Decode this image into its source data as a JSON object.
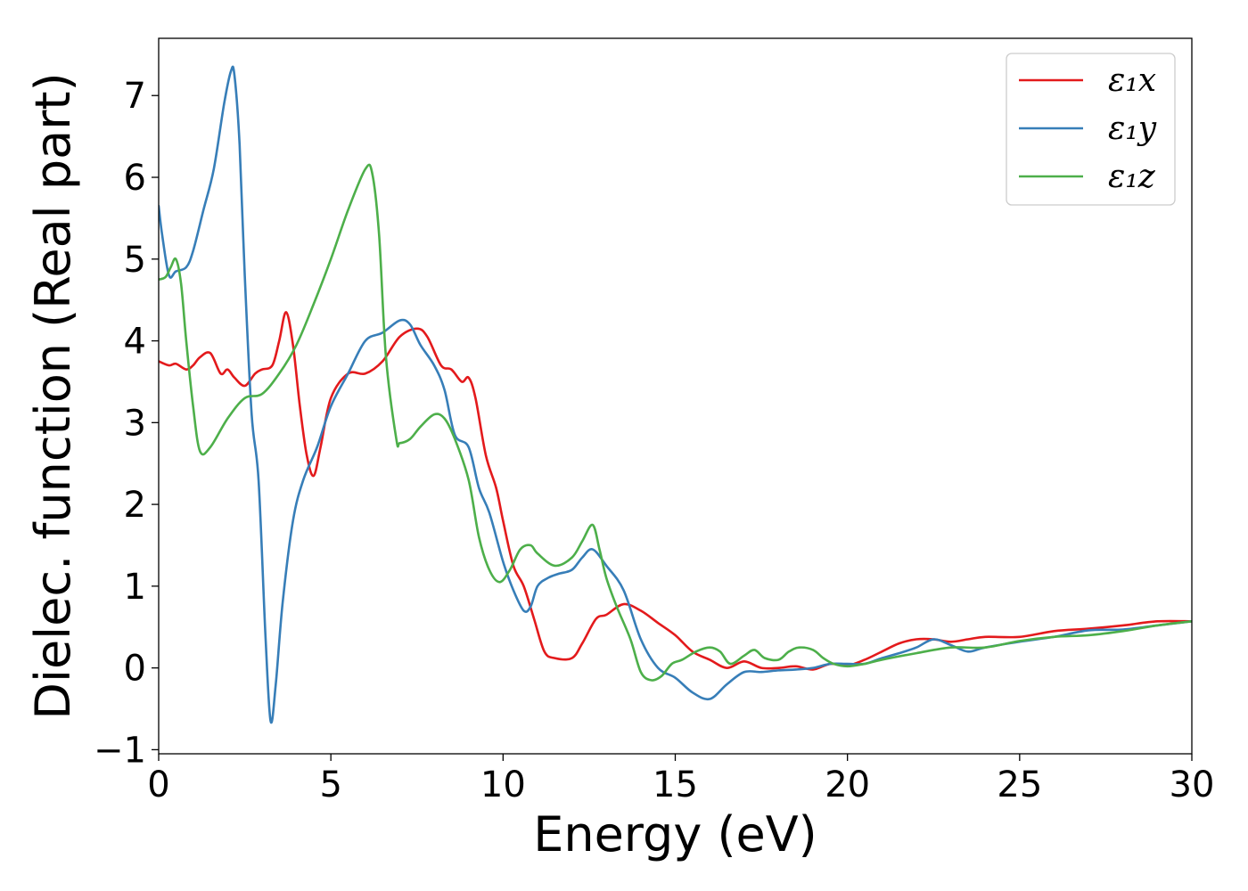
{
  "chart_data": {
    "type": "line",
    "xlabel": "Energy (eV)",
    "ylabel": "Dielec. function (Real part)",
    "xlim": [
      0,
      30
    ],
    "ylim": [
      -1.05,
      7.7
    ],
    "xticks": [
      0,
      5,
      10,
      15,
      20,
      25,
      30
    ],
    "yticks": [
      -1,
      0,
      1,
      2,
      3,
      4,
      5,
      6,
      7
    ],
    "xtick_labels": [
      "0",
      "5",
      "10",
      "15",
      "20",
      "25",
      "30"
    ],
    "ytick_labels": [
      "−1",
      "0",
      "1",
      "2",
      "3",
      "4",
      "5",
      "6",
      "7"
    ],
    "grid": false,
    "legend_position": "top-right",
    "series": [
      {
        "name": "ε₁x",
        "color": "#e31a1c",
        "x": [
          0,
          0.3,
          0.5,
          0.8,
          1.0,
          1.2,
          1.5,
          1.8,
          2.0,
          2.2,
          2.5,
          2.8,
          3.0,
          3.3,
          3.5,
          3.7,
          3.9,
          4.1,
          4.3,
          4.5,
          4.7,
          5.0,
          5.5,
          6.0,
          6.5,
          7.0,
          7.5,
          7.8,
          8.2,
          8.5,
          8.8,
          9.0,
          9.2,
          9.5,
          9.8,
          10.0,
          10.3,
          10.6,
          10.9,
          11.2,
          11.5,
          12.0,
          12.3,
          12.7,
          13.0,
          13.5,
          14.0,
          14.5,
          15.0,
          15.5,
          16.0,
          16.5,
          17.0,
          17.5,
          18.0,
          18.5,
          19.0,
          19.5,
          20.0,
          20.5,
          21.0,
          21.5,
          22.0,
          22.5,
          23.0,
          23.5,
          24.0,
          25.0,
          26.0,
          27.0,
          28.0,
          29.0,
          30.0
        ],
        "y": [
          3.75,
          3.7,
          3.72,
          3.65,
          3.7,
          3.8,
          3.85,
          3.6,
          3.65,
          3.55,
          3.45,
          3.6,
          3.65,
          3.7,
          4.0,
          4.35,
          3.95,
          3.2,
          2.6,
          2.35,
          2.7,
          3.3,
          3.6,
          3.6,
          3.75,
          4.05,
          4.15,
          4.05,
          3.7,
          3.65,
          3.5,
          3.55,
          3.3,
          2.6,
          2.2,
          1.8,
          1.25,
          1.0,
          0.6,
          0.2,
          0.12,
          0.12,
          0.3,
          0.6,
          0.65,
          0.78,
          0.7,
          0.55,
          0.4,
          0.2,
          0.1,
          0.0,
          0.08,
          0.0,
          0.0,
          0.02,
          -0.02,
          0.05,
          0.03,
          0.1,
          0.2,
          0.3,
          0.35,
          0.35,
          0.32,
          0.35,
          0.38,
          0.38,
          0.45,
          0.48,
          0.52,
          0.57,
          0.57
        ]
      },
      {
        "name": "ε₁y",
        "color": "#377eb8",
        "x": [
          0,
          0.1,
          0.3,
          0.5,
          0.8,
          1.0,
          1.3,
          1.6,
          1.9,
          2.1,
          2.2,
          2.35,
          2.5,
          2.7,
          2.9,
          3.1,
          3.25,
          3.4,
          3.6,
          3.9,
          4.2,
          4.6,
          5.0,
          5.5,
          6.0,
          6.5,
          7.0,
          7.3,
          7.6,
          8.0,
          8.3,
          8.6,
          9.0,
          9.3,
          9.6,
          10.0,
          10.3,
          10.6,
          10.8,
          11.0,
          11.3,
          11.6,
          12.0,
          12.3,
          12.6,
          13.0,
          13.5,
          14.0,
          14.5,
          15.0,
          15.5,
          16.0,
          16.5,
          17.0,
          17.5,
          18.0,
          18.5,
          19.0,
          19.5,
          20.0,
          20.5,
          21.0,
          21.5,
          22.0,
          22.5,
          23.0,
          23.5,
          24.0,
          25.0,
          26.0,
          27.0,
          28.0,
          29.0,
          30.0
        ],
        "y": [
          5.65,
          5.3,
          4.8,
          4.85,
          4.9,
          5.1,
          5.6,
          6.1,
          6.9,
          7.3,
          7.25,
          6.4,
          4.8,
          3.1,
          2.3,
          0.4,
          -0.65,
          -0.2,
          0.8,
          1.8,
          2.3,
          2.7,
          3.2,
          3.6,
          4.0,
          4.1,
          4.25,
          4.2,
          3.95,
          3.7,
          3.4,
          2.85,
          2.7,
          2.2,
          1.9,
          1.3,
          0.95,
          0.7,
          0.75,
          1.0,
          1.1,
          1.15,
          1.2,
          1.35,
          1.45,
          1.25,
          0.95,
          0.35,
          0.0,
          -0.12,
          -0.3,
          -0.38,
          -0.2,
          -0.05,
          -0.05,
          -0.03,
          -0.02,
          0.0,
          0.05,
          0.05,
          0.05,
          0.12,
          0.18,
          0.25,
          0.35,
          0.28,
          0.2,
          0.25,
          0.32,
          0.38,
          0.46,
          0.47,
          0.52,
          0.57
        ]
      },
      {
        "name": "ε₁z",
        "color": "#4daf4a",
        "x": [
          0,
          0.2,
          0.35,
          0.5,
          0.65,
          0.8,
          1.0,
          1.2,
          1.5,
          2.0,
          2.5,
          3.0,
          3.5,
          4.0,
          4.5,
          5.0,
          5.5,
          6.0,
          6.2,
          6.4,
          6.6,
          6.9,
          7.0,
          7.3,
          7.6,
          8.0,
          8.3,
          8.6,
          9.0,
          9.3,
          9.6,
          9.9,
          10.2,
          10.5,
          10.8,
          11.0,
          11.5,
          12.0,
          12.3,
          12.6,
          12.8,
          13.0,
          13.3,
          13.7,
          14.0,
          14.3,
          14.6,
          14.9,
          15.2,
          15.6,
          16.0,
          16.3,
          16.6,
          17.0,
          17.3,
          17.6,
          18.0,
          18.3,
          18.6,
          19.0,
          19.3,
          19.6,
          20.0,
          20.5,
          21.0,
          22.0,
          23.0,
          24.0,
          25.0,
          26.0,
          27.0,
          28.0,
          29.0,
          30.0
        ],
        "y": [
          4.75,
          4.78,
          4.9,
          5.0,
          4.7,
          4.0,
          3.2,
          2.65,
          2.7,
          3.05,
          3.3,
          3.35,
          3.6,
          3.95,
          4.45,
          5.0,
          5.6,
          6.1,
          6.05,
          5.3,
          3.8,
          2.8,
          2.75,
          2.8,
          2.95,
          3.1,
          3.05,
          2.8,
          2.3,
          1.6,
          1.2,
          1.05,
          1.2,
          1.45,
          1.5,
          1.4,
          1.25,
          1.35,
          1.55,
          1.75,
          1.45,
          1.1,
          0.75,
          0.35,
          -0.05,
          -0.15,
          -0.1,
          0.05,
          0.1,
          0.2,
          0.25,
          0.2,
          0.05,
          0.15,
          0.22,
          0.12,
          0.1,
          0.2,
          0.25,
          0.22,
          0.12,
          0.05,
          0.02,
          0.05,
          0.1,
          0.18,
          0.25,
          0.25,
          0.33,
          0.38,
          0.4,
          0.45,
          0.52,
          0.57
        ]
      }
    ]
  }
}
